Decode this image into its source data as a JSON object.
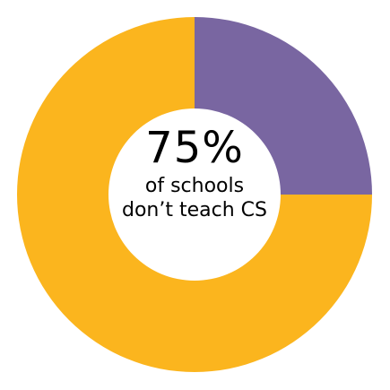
{
  "chart_data": {
    "type": "pie",
    "style": "donut",
    "slices": [
      {
        "value": 75,
        "color": "#fbb51e"
      },
      {
        "value": 25,
        "color": "#7966a1"
      }
    ],
    "center_value": "75%",
    "center_caption_line1": "of schools",
    "center_caption_line2": "don’t teach CS"
  }
}
